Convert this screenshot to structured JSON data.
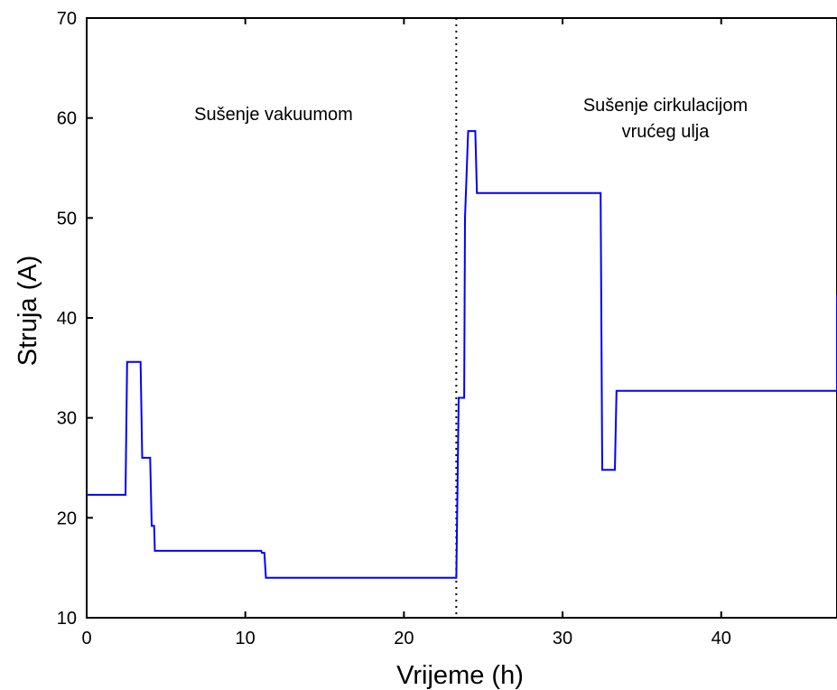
{
  "chart_data": {
    "type": "line",
    "title": "",
    "xlabel": "Vrijeme (h)",
    "ylabel": "Struja (A)",
    "xlim": [
      0,
      47.3
    ],
    "ylim": [
      10,
      70
    ],
    "xticks": [
      0,
      10,
      20,
      30,
      40
    ],
    "yticks": [
      10,
      20,
      30,
      40,
      50,
      60,
      70
    ],
    "grid": false,
    "series": [
      {
        "name": "",
        "color": "#0000ff",
        "x": [
          0,
          2.45,
          2.55,
          3.4,
          3.5,
          4.0,
          4.1,
          4.25,
          4.3,
          4.4,
          11.0,
          11.05,
          11.2,
          11.3,
          23.2,
          23.3,
          23.45,
          23.8,
          23.85,
          24.05,
          24.1,
          24.5,
          24.6,
          32.4,
          32.5,
          33.3,
          33.4,
          47.3,
          47.3
        ],
        "y": [
          22.3,
          22.3,
          35.6,
          35.6,
          26.0,
          26.0,
          19.2,
          19.2,
          16.7,
          16.7,
          16.7,
          16.5,
          16.5,
          14.0,
          14.0,
          14.0,
          32.0,
          32.0,
          50.0,
          58.7,
          58.7,
          58.7,
          52.5,
          52.5,
          24.8,
          24.8,
          32.7,
          32.7,
          42.3
        ]
      }
    ],
    "vline": {
      "x": 23.3,
      "style": "dotted"
    },
    "annotations": [
      {
        "lines": [
          "Sušenje vakuumom"
        ]
      },
      {
        "lines": [
          "Sušenje cirkulacijom",
          "vrućeg ulja"
        ]
      }
    ]
  }
}
